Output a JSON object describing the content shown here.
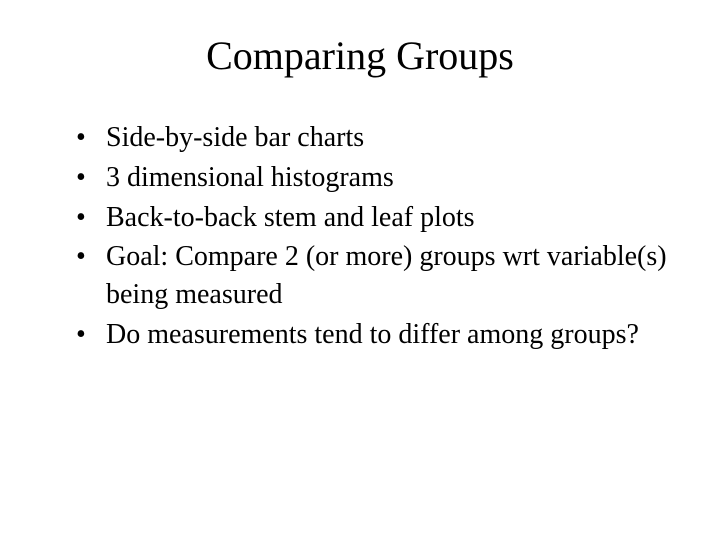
{
  "slide": {
    "title": "Comparing Groups",
    "bullets": [
      "Side-by-side bar charts",
      "3 dimensional histograms",
      "Back-to-back stem and leaf plots",
      "Goal: Compare 2 (or more) groups wrt variable(s) being measured",
      "Do measurements tend to differ among groups?"
    ],
    "title_fontsize": 40,
    "body_fontsize": 28,
    "text_color": "#000000",
    "background_color": "#ffffff",
    "font_family": "Times New Roman"
  }
}
